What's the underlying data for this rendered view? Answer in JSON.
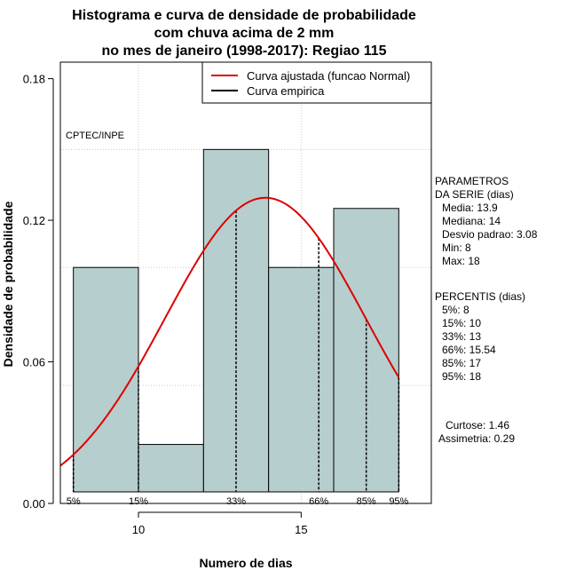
{
  "chart_data": {
    "type": "bar",
    "title_lines": [
      "Histograma e curva de densidade de probabilidade",
      "com chuva acima de 2 mm",
      "no mes de janeiro (1998-2017): Regiao 115"
    ],
    "xlabel": "Numero de dias",
    "ylabel": "Densidade de probabilidade",
    "xlim": [
      7.6,
      19.0
    ],
    "ylim": [
      0,
      0.187
    ],
    "x_ticks": [
      10,
      15
    ],
    "y_ticks": [
      0.0,
      0.06,
      0.12,
      0.18
    ],
    "y_tick_labels": [
      "0.00",
      "0.06",
      "0.12",
      "0.18"
    ],
    "grid": true,
    "bins": [
      {
        "x0": 8,
        "x1": 10,
        "density": 0.1
      },
      {
        "x0": 10,
        "x1": 12,
        "density": 0.025
      },
      {
        "x0": 12,
        "x1": 14,
        "density": 0.15
      },
      {
        "x0": 14,
        "x1": 16,
        "density": 0.1
      },
      {
        "x0": 16,
        "x1": 18,
        "density": 0.125
      }
    ],
    "bar_color": "#b6cecd",
    "fitted_curve": {
      "name": "Curva ajustada (funcao Normal)",
      "distribution": "normal",
      "mean": 13.9,
      "sd": 3.08,
      "color": "#dd0000"
    },
    "empirical_curve": {
      "name": "Curva empirica",
      "color": "#000000"
    },
    "legend_position": "top-right",
    "percentile_lines": [
      {
        "label": "5%",
        "x": 8
      },
      {
        "label": "15%",
        "x": 10
      },
      {
        "label": "33%",
        "x": 13
      },
      {
        "label": "66%",
        "x": 15.54
      },
      {
        "label": "85%",
        "x": 17
      },
      {
        "label": "95%",
        "x": 18
      }
    ],
    "annotation": "CPTEC/INPE",
    "parameters": {
      "heading": [
        "PARAMETROS",
        "DA SERIE (dias)"
      ],
      "items": [
        "Media: 13.9",
        "Mediana: 14",
        "Desvio padrao: 3.08",
        "Min: 8",
        "Max: 18"
      ]
    },
    "percentiles": {
      "heading": "PERCENTIS (dias)",
      "items": [
        "5%: 8",
        "15%: 10",
        "33%: 13",
        "66%: 15.54",
        "85%: 17",
        "95%: 18"
      ]
    },
    "shape_stats": [
      "Curtose: 1.46",
      "Assimetria: 0.29"
    ]
  }
}
